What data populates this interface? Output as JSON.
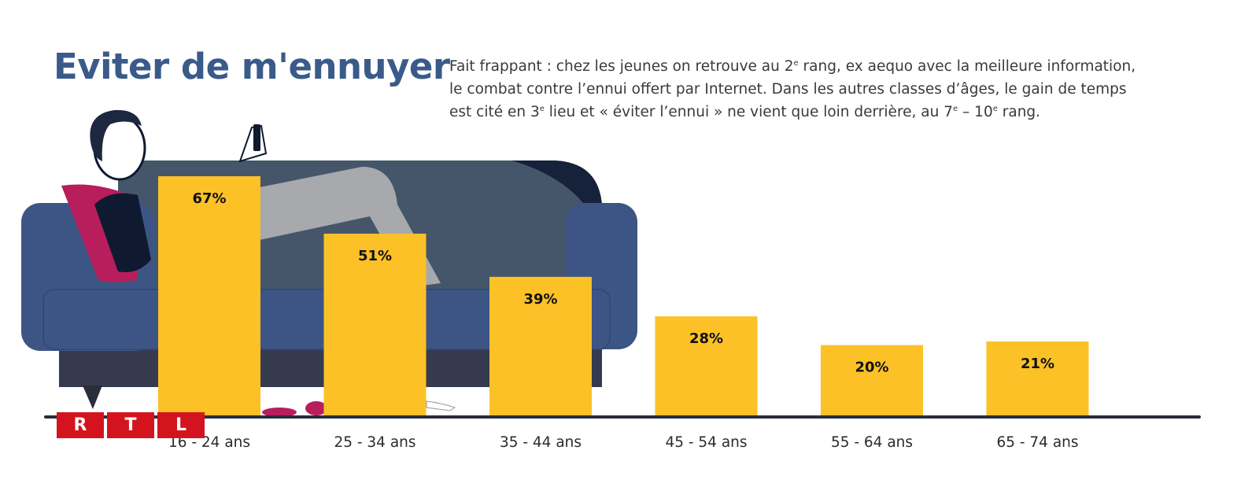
{
  "header": {
    "title": "Eviter de m'ennuyer",
    "description": [
      {
        "parts": [
          "Fait frappant : chez les jeunes on retrouve au 2",
          "e",
          " rang, ex aequo avec la meilleure information,"
        ]
      },
      {
        "parts": [
          "le combat contre l’ennui offert par Internet. Dans les autres classes d’âges, le gain de temps",
          "",
          ""
        ]
      },
      {
        "parts": [
          "est cité en 3",
          "e",
          " lieu et « éviter l’ennui » ne vient que loin derrière, au 7",
          "e",
          " – 10",
          "e",
          " rang."
        ]
      }
    ]
  },
  "logo": {
    "letters": [
      "R",
      "T",
      "L"
    ]
  },
  "colors": {
    "bar": "#fbc127",
    "title": "#3a5a8a",
    "baseline": "#2a2d3a",
    "logo": "#d3141f"
  },
  "chart_data": {
    "type": "bar",
    "categories": [
      "16 - 24 ans",
      "25 - 34 ans",
      "35 - 44 ans",
      "45 - 54 ans",
      "55 - 64 ans",
      "65 - 74 ans"
    ],
    "values": [
      67,
      51,
      39,
      28,
      20,
      21
    ],
    "value_labels": [
      "67%",
      "51%",
      "39%",
      "28%",
      "20%",
      "21%"
    ],
    "unit": "%",
    "xlabel": "",
    "ylabel": "",
    "ylim": [
      0,
      100
    ],
    "grid": false,
    "legend": "none"
  }
}
